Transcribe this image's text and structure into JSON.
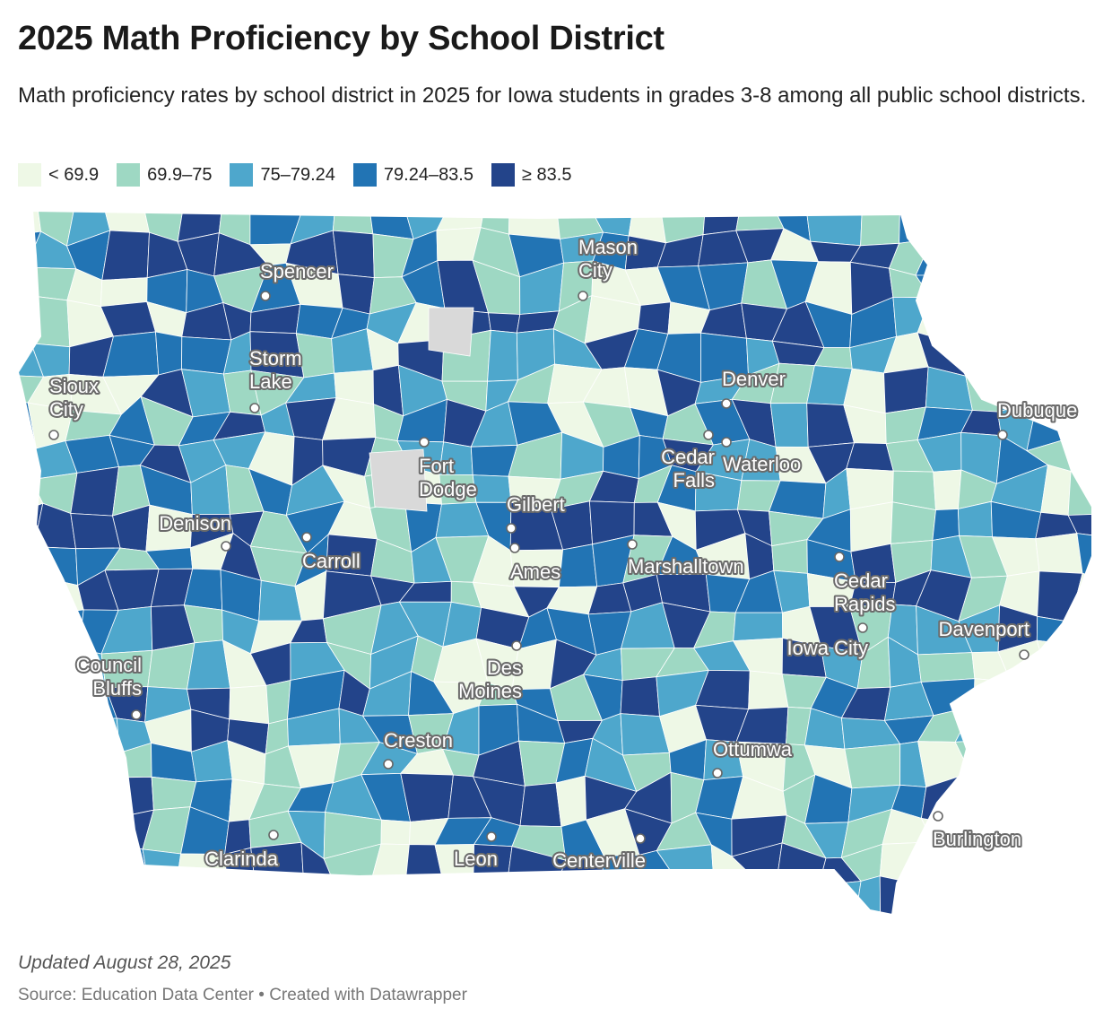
{
  "title": "2025 Math Proficiency by School District",
  "subtitle": "Math proficiency rates by school district in 2025 for Iowa students in grades 3-8 among all public school districts.",
  "legend": [
    {
      "label": "< 69.9",
      "color": "#eef8e6"
    },
    {
      "label": "69.9–75",
      "color": "#9ed8c3"
    },
    {
      "label": "75–79.24",
      "color": "#4ea7cc"
    },
    {
      "label": "79.24–83.5",
      "color": "#2274b4"
    },
    {
      "label": "≥ 83.5",
      "color": "#23448a"
    }
  ],
  "no_data_color": "#d9d9d9",
  "cities": [
    {
      "name": "Spencer",
      "lines": [
        "Spencer"
      ]
    },
    {
      "name": "Mason City",
      "lines": [
        "Mason",
        "City"
      ]
    },
    {
      "name": "Storm Lake",
      "lines": [
        "Storm",
        "Lake"
      ]
    },
    {
      "name": "Sioux City",
      "lines": [
        "Sioux",
        "City"
      ]
    },
    {
      "name": "Denver",
      "lines": [
        "Denver"
      ]
    },
    {
      "name": "Dubuque",
      "lines": [
        "Dubuque"
      ]
    },
    {
      "name": "Fort Dodge",
      "lines": [
        "Fort",
        "Dodge"
      ]
    },
    {
      "name": "Cedar Falls",
      "lines": [
        "Cedar",
        "Falls"
      ]
    },
    {
      "name": "Waterloo",
      "lines": [
        "Waterloo"
      ]
    },
    {
      "name": "Gilbert",
      "lines": [
        "Gilbert"
      ]
    },
    {
      "name": "Denison",
      "lines": [
        "Denison"
      ]
    },
    {
      "name": "Ames",
      "lines": [
        "Ames"
      ]
    },
    {
      "name": "Carroll",
      "lines": [
        "Carroll"
      ]
    },
    {
      "name": "Marshalltown",
      "lines": [
        "Marshalltown"
      ]
    },
    {
      "name": "Cedar Rapids",
      "lines": [
        "Cedar",
        "Rapids"
      ]
    },
    {
      "name": "Davenport",
      "lines": [
        "Davenport"
      ]
    },
    {
      "name": "Iowa City",
      "lines": [
        "Iowa City"
      ]
    },
    {
      "name": "Council Bluffs",
      "lines": [
        "Council",
        "Bluffs"
      ]
    },
    {
      "name": "Des Moines",
      "lines": [
        "Des",
        "Moines"
      ]
    },
    {
      "name": "Creston",
      "lines": [
        "Creston"
      ]
    },
    {
      "name": "Ottumwa",
      "lines": [
        "Ottumwa"
      ]
    },
    {
      "name": "Burlington",
      "lines": [
        "Burlington"
      ]
    },
    {
      "name": "Clarinda",
      "lines": [
        "Clarinda"
      ]
    },
    {
      "name": "Leon",
      "lines": [
        "Leon"
      ]
    },
    {
      "name": "Centerville",
      "lines": [
        "Centerville"
      ]
    }
  ],
  "notes": "Updated August 28, 2025",
  "source": "Source: Education Data Center • Created with Datawrapper"
}
